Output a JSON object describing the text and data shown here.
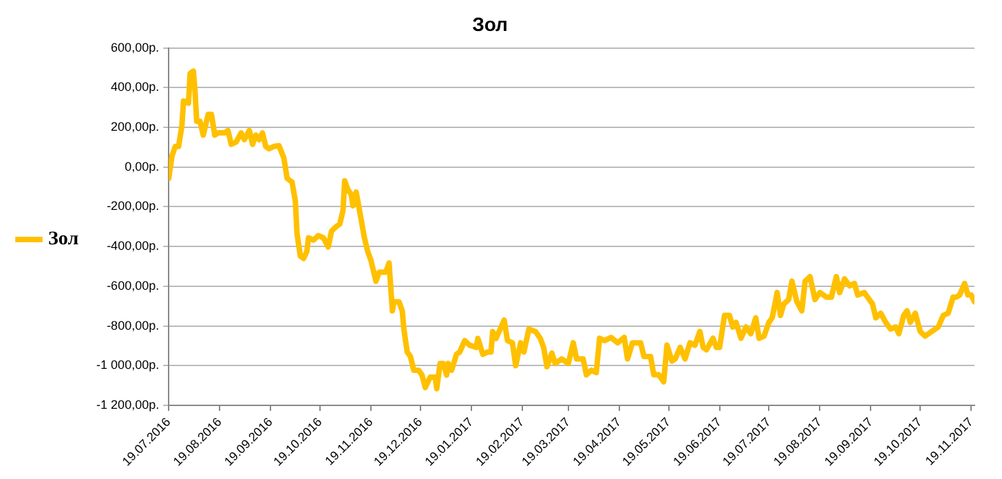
{
  "chart_data": {
    "type": "line",
    "title": "Зол",
    "legend": "left",
    "grid": "y",
    "xlim": [
      "2016-07-19",
      "2017-11-21"
    ],
    "xticks": [
      {
        "value": "2016-07-19",
        "label": "19.07.2016"
      },
      {
        "value": "2016-08-19",
        "label": "19.08.2016"
      },
      {
        "value": "2016-09-19",
        "label": "19.09.2016"
      },
      {
        "value": "2016-10-19",
        "label": "19.10.2016"
      },
      {
        "value": "2016-11-19",
        "label": "19.11.2016"
      },
      {
        "value": "2016-12-19",
        "label": "19.12.2016"
      },
      {
        "value": "2017-01-19",
        "label": "19.01.2017"
      },
      {
        "value": "2017-02-19",
        "label": "19.02.2017"
      },
      {
        "value": "2017-03-19",
        "label": "19.03.2017"
      },
      {
        "value": "2017-04-19",
        "label": "19.04.2017"
      },
      {
        "value": "2017-05-19",
        "label": "19.05.2017"
      },
      {
        "value": "2017-06-19",
        "label": "19.06.2017"
      },
      {
        "value": "2017-07-19",
        "label": "19.07.2017"
      },
      {
        "value": "2017-08-19",
        "label": "19.08.2017"
      },
      {
        "value": "2017-09-19",
        "label": "19.09.2017"
      },
      {
        "value": "2017-10-19",
        "label": "19.10.2017"
      },
      {
        "value": "2017-11-19",
        "label": "19.11.2017"
      }
    ],
    "ylim": [
      -1200,
      600
    ],
    "yticks": [
      {
        "value": -1200,
        "label": "-1 200,00р."
      },
      {
        "value": -1000,
        "label": "-1 000,00р."
      },
      {
        "value": -800,
        "label": "-800,00р."
      },
      {
        "value": -600,
        "label": "-600,00р."
      },
      {
        "value": -400,
        "label": "-400,00р."
      },
      {
        "value": -200,
        "label": "-200,00р."
      },
      {
        "value": 0,
        "label": "0,00р."
      },
      {
        "value": 200,
        "label": "200,00р."
      },
      {
        "value": 400,
        "label": "400,00р."
      },
      {
        "value": 600,
        "label": "600,00р."
      }
    ],
    "marker": "none",
    "line_style": "solid",
    "x": [
      "2016-07-19",
      "2016-07-21",
      "2016-07-23",
      "2016-07-25",
      "2016-07-27",
      "2016-07-28",
      "2016-07-31",
      "2016-08-01",
      "2016-08-03",
      "2016-08-04",
      "2016-08-05",
      "2016-08-07",
      "2016-08-09",
      "2016-08-10",
      "2016-08-12",
      "2016-08-14",
      "2016-08-16",
      "2016-08-18",
      "2016-08-22",
      "2016-08-24",
      "2016-08-26",
      "2016-08-29",
      "2016-09-01",
      "2016-09-03",
      "2016-09-06",
      "2016-09-08",
      "2016-09-10",
      "2016-09-12",
      "2016-09-14",
      "2016-09-16",
      "2016-09-18",
      "2016-09-21",
      "2016-09-24",
      "2016-09-27",
      "2016-09-29",
      "2016-10-02",
      "2016-10-04",
      "2016-10-05",
      "2016-10-07",
      "2016-10-09",
      "2016-10-11",
      "2016-10-12",
      "2016-10-15",
      "2016-10-18",
      "2016-10-21",
      "2016-10-24",
      "2016-10-26",
      "2016-10-29",
      "2016-10-31",
      "2016-11-02",
      "2016-11-03",
      "2016-11-05",
      "2016-11-07",
      "2016-11-08",
      "2016-11-10",
      "2016-11-12",
      "2016-11-15",
      "2016-11-17",
      "2016-11-19",
      "2016-11-22",
      "2016-11-24",
      "2016-11-28",
      "2016-11-30",
      "2016-12-02",
      "2016-12-03",
      "2016-12-06",
      "2016-12-08",
      "2016-12-09",
      "2016-12-11",
      "2016-12-13",
      "2016-12-15",
      "2016-12-18",
      "2016-12-20",
      "2016-12-22",
      "2016-12-25",
      "2016-12-28",
      "2016-12-29",
      "2016-12-31",
      "2017-01-02",
      "2017-01-04",
      "2017-01-05",
      "2017-01-07",
      "2017-01-10",
      "2017-01-12",
      "2017-01-15",
      "2017-01-18",
      "2017-01-22",
      "2017-01-23",
      "2017-01-26",
      "2017-01-29",
      "2017-01-31",
      "2017-02-01",
      "2017-02-03",
      "2017-02-08",
      "2017-02-10",
      "2017-02-13",
      "2017-02-15",
      "2017-02-18",
      "2017-02-20",
      "2017-02-23",
      "2017-02-27",
      "2017-03-02",
      "2017-03-04",
      "2017-03-06",
      "2017-03-09",
      "2017-03-11",
      "2017-03-15",
      "2017-03-19",
      "2017-03-22",
      "2017-03-24",
      "2017-03-28",
      "2017-03-30",
      "2017-04-02",
      "2017-04-05",
      "2017-04-07",
      "2017-04-10",
      "2017-04-14",
      "2017-04-18",
      "2017-04-22",
      "2017-04-24",
      "2017-04-27",
      "2017-05-02",
      "2017-05-04",
      "2017-05-08",
      "2017-05-10",
      "2017-05-13",
      "2017-05-16",
      "2017-05-18",
      "2017-05-21",
      "2017-05-23",
      "2017-05-26",
      "2017-05-29",
      "2017-06-01",
      "2017-06-04",
      "2017-06-07",
      "2017-06-09",
      "2017-06-11",
      "2017-06-15",
      "2017-06-17",
      "2017-06-19",
      "2017-06-22",
      "2017-06-25",
      "2017-06-27",
      "2017-06-29",
      "2017-07-02",
      "2017-07-05",
      "2017-07-08",
      "2017-07-11",
      "2017-07-13",
      "2017-07-16",
      "2017-07-19",
      "2017-07-21",
      "2017-07-24",
      "2017-07-26",
      "2017-07-28",
      "2017-07-31",
      "2017-08-02",
      "2017-08-05",
      "2017-08-08",
      "2017-08-10",
      "2017-08-13",
      "2017-08-16",
      "2017-08-19",
      "2017-08-23",
      "2017-08-26",
      "2017-08-29",
      "2017-08-31",
      "2017-09-03",
      "2017-09-06",
      "2017-09-09",
      "2017-09-11",
      "2017-09-15",
      "2017-09-17",
      "2017-09-20",
      "2017-09-22",
      "2017-09-25",
      "2017-09-28",
      "2017-10-01",
      "2017-10-04",
      "2017-10-06",
      "2017-10-09",
      "2017-10-11",
      "2017-10-13",
      "2017-10-16",
      "2017-10-19",
      "2017-10-22",
      "2017-10-26",
      "2017-10-30",
      "2017-11-02",
      "2017-11-05",
      "2017-11-08",
      "2017-11-10",
      "2017-11-12",
      "2017-11-15",
      "2017-11-17",
      "2017-11-19",
      "2017-11-21"
    ],
    "series": [
      {
        "name": "Зол",
        "color": "#ffc000",
        "values": [
          -57,
          57,
          104,
          104,
          207,
          333,
          322,
          471,
          483,
          380,
          230,
          230,
          161,
          196,
          265,
          265,
          161,
          172,
          172,
          184,
          115,
          126,
          172,
          138,
          184,
          115,
          161,
          138,
          172,
          104,
          92,
          104,
          108,
          46,
          -57,
          -76,
          -172,
          -333,
          -448,
          -460,
          -425,
          -356,
          -368,
          -345,
          -356,
          -402,
          -322,
          -299,
          -287,
          -218,
          -69,
          -115,
          -138,
          -195,
          -126,
          -218,
          -356,
          -425,
          -471,
          -575,
          -529,
          -529,
          -483,
          -724,
          -678,
          -678,
          -724,
          -816,
          -931,
          -954,
          -1023,
          -1023,
          -1047,
          -1110,
          -1058,
          -1058,
          -1116,
          -989,
          -989,
          -1047,
          -989,
          -1023,
          -943,
          -931,
          -874,
          -897,
          -908,
          -863,
          -943,
          -931,
          -931,
          -828,
          -863,
          -771,
          -874,
          -885,
          -1000,
          -885,
          -931,
          -816,
          -828,
          -863,
          -908,
          -1005,
          -937,
          -989,
          -966,
          -989,
          -885,
          -966,
          -966,
          -1046,
          -1023,
          -1035,
          -862,
          -874,
          -858,
          -885,
          -858,
          -966,
          -885,
          -885,
          -954,
          -954,
          -1046,
          -1046,
          -1081,
          -897,
          -977,
          -966,
          -908,
          -966,
          -885,
          -897,
          -828,
          -908,
          -920,
          -862,
          -908,
          -908,
          -747,
          -747,
          -805,
          -782,
          -862,
          -805,
          -839,
          -759,
          -862,
          -851,
          -782,
          -759,
          -632,
          -747,
          -690,
          -667,
          -575,
          -678,
          -724,
          -575,
          -552,
          -667,
          -632,
          -655,
          -655,
          -552,
          -632,
          -563,
          -598,
          -586,
          -644,
          -632,
          -655,
          -690,
          -759,
          -736,
          -782,
          -816,
          -805,
          -839,
          -747,
          -724,
          -782,
          -736,
          -828,
          -851,
          -828,
          -805,
          -747,
          -736,
          -655,
          -655,
          -644,
          -586,
          -644,
          -644,
          -678
        ]
      }
    ]
  }
}
